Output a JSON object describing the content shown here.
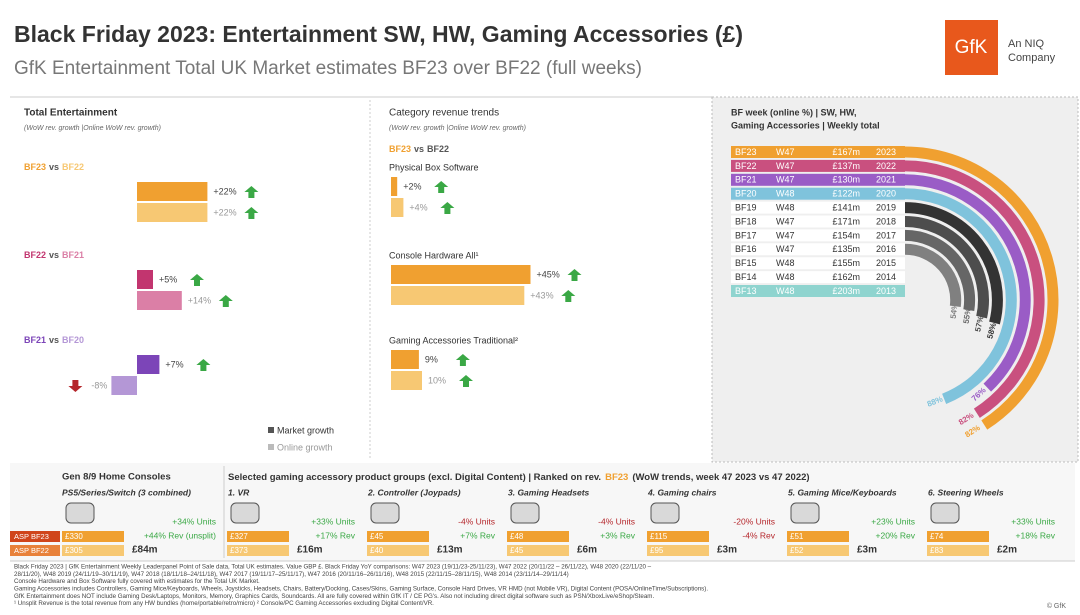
{
  "header": {
    "title": "Black Friday 2023: Entertainment SW, HW, Gaming Accessories (£)",
    "subtitle": "GfK Entertainment Total UK Market estimates BF23 over BF22 (full weeks)",
    "logo": "GfK",
    "tagline": [
      "An NIQ",
      "Company"
    ]
  },
  "total_entertainment": {
    "title": "Total Entertainment",
    "subtitle": "(WoW rev. growth |Online WoW rev. growth)",
    "groups": [
      {
        "label": [
          "BF23",
          "vs",
          "BF22"
        ],
        "colors": [
          "#f0a030",
          "#f7c873"
        ],
        "values": [
          22,
          22
        ],
        "value_labels": [
          "+22%",
          "+22%"
        ]
      },
      {
        "label": [
          "BF22",
          "vs",
          "BF21"
        ],
        "colors": [
          "#c2356f",
          "#db7fa6"
        ],
        "values": [
          5,
          14
        ],
        "value_labels": [
          "+5%",
          "+14%"
        ]
      },
      {
        "label": [
          "BF21",
          "vs",
          "BF20"
        ],
        "colors": [
          "#7c45b8",
          "#b497d6"
        ],
        "values": [
          7,
          -8
        ],
        "value_labels": [
          "+7%",
          "-8%"
        ]
      }
    ],
    "legend": [
      {
        "name": "Market growth",
        "color": "#555555"
      },
      {
        "name": "Online growth",
        "color": "#bbbbbb"
      }
    ]
  },
  "category_trends": {
    "title": "Category revenue trends",
    "subtitle": "(WoW rev. growth |Online WoW rev. growth)",
    "label": [
      "BF23",
      "vs",
      "BF22"
    ],
    "colors": [
      "#f0a030",
      "#f7c873"
    ],
    "groups": [
      {
        "name": "Physical Box Software",
        "values": [
          2,
          4
        ],
        "value_labels": [
          "+2%",
          "+4%"
        ]
      },
      {
        "name": "Console Hardware All¹",
        "values": [
          45,
          43
        ],
        "value_labels": [
          "+45%",
          "+43%"
        ]
      },
      {
        "name": "Gaming Accessories Traditional²",
        "values": [
          9,
          10
        ],
        "value_labels": [
          "9%",
          "10%"
        ]
      }
    ]
  },
  "bf_weeks": {
    "title": [
      "BF week (online %) | SW, HW,",
      "Gaming Accessories | Weekly total"
    ],
    "rows": [
      [
        "BF23",
        "W47",
        "£167m",
        "2023"
      ],
      [
        "BF22",
        "W47",
        "£137m",
        "2022"
      ],
      [
        "BF21",
        "W47",
        "£130m",
        "2021"
      ],
      [
        "BF20",
        "W48",
        "£122m",
        "2020"
      ],
      [
        "BF19",
        "W48",
        "£141m",
        "2019"
      ],
      [
        "BF18",
        "W47",
        "£171m",
        "2018"
      ],
      [
        "BF17",
        "W47",
        "£154m",
        "2017"
      ],
      [
        "BF16",
        "W47",
        "£135m",
        "2016"
      ],
      [
        "BF15",
        "W48",
        "£155m",
        "2015"
      ],
      [
        "BF14",
        "W48",
        "£162m",
        "2014"
      ],
      [
        "BF13",
        "W48",
        "£203m",
        "2013"
      ]
    ],
    "colors": [
      "#f0a030",
      "#c9507f",
      "#9a5cc6",
      "#7fc3dc",
      "#333333",
      "#4d4d4d",
      "#666666",
      "#808080",
      "#9a9a9a",
      "#b5b5b5",
      "#8fd4cf"
    ],
    "row_fills": [
      "#f0a030",
      "#c9507f",
      "#9a5cc6",
      "#7fc3dc",
      null,
      null,
      null,
      null,
      null,
      null,
      "#8fd4cf"
    ],
    "online_pct": [
      82,
      82,
      76,
      88,
      58,
      57,
      55,
      54,
      null,
      null,
      null
    ],
    "online_labels": [
      "82%",
      "82%",
      "76%",
      "88%",
      "58%",
      "57%",
      "55%",
      "54%",
      null,
      null,
      null
    ]
  },
  "consoles": {
    "title": "Gen 8/9 Home Consoles",
    "name": "PS5/Series/Switch (3 combined)",
    "units": 34,
    "units_label": "+34% Units",
    "rev": 44,
    "rev_label": "+44% Rev (unsplit)",
    "revenue_label": "£84m",
    "asp_labels": [
      "£330",
      "£305"
    ],
    "asp_row_labels": [
      "ASP BF23",
      "ASP BF22"
    ]
  },
  "accessories": {
    "title": [
      "Selected gaming accessory product groups (excl. Digital Content) | Ranked on rev.",
      "BF23",
      "(WoW trends, week 47 2023 vs 47 2022)"
    ],
    "groups": [
      {
        "name": "1. VR",
        "units": 33,
        "units_label": "+33% Units",
        "rev": 17,
        "rev_label": "+17% Rev",
        "revenue_label": "£16m",
        "asp_labels": [
          "£327",
          "£373"
        ]
      },
      {
        "name": "2. Controller (Joypads)",
        "units": -4,
        "units_label": "-4% Units",
        "rev": 7,
        "rev_label": "+7% Rev",
        "revenue_label": "£13m",
        "asp_labels": [
          "£45",
          "£40"
        ]
      },
      {
        "name": "3. Gaming Headsets",
        "units": -4,
        "units_label": "-4% Units",
        "rev": 3,
        "rev_label": "+3% Rev",
        "revenue_label": "£6m",
        "asp_labels": [
          "£48",
          "£45"
        ]
      },
      {
        "name": "4. Gaming chairs",
        "units": -20,
        "units_label": "-20% Units",
        "rev": -4,
        "rev_label": "-4% Rev",
        "revenue_label": "£3m",
        "asp_labels": [
          "£115",
          "£95"
        ]
      },
      {
        "name": "5. Gaming Mice/Keyboards",
        "units": 23,
        "units_label": "+23% Units",
        "rev": 20,
        "rev_label": "+20% Rev",
        "revenue_label": "£3m",
        "asp_labels": [
          "£51",
          "£52"
        ]
      },
      {
        "name": "6. Steering Wheels",
        "units": 33,
        "units_label": "+33% Units",
        "rev": 18,
        "rev_label": "+18% Rev",
        "revenue_label": "£2m",
        "asp_labels": [
          "£74",
          "£83"
        ]
      }
    ]
  },
  "footnotes": [
    "Black Friday 2023 | GfK Entertainment Weekly Leaderpanel Point of Sale data, Total UK estimates. Value GBP £. Black Friday YoY comparisons: W47 2023 (19/11/23-25/11/23), W47 2022 (20/11/22 – 26/11/22), W48 2020 (22/11/20 –",
    "28/11/20), W48 2019 (24/11/19–30/11/19), W47 2018 (18/11/18–24/11/18), W47 2017 (19/11/17–25/11/17), W47 2016 (20/11/16–26/11/16), W48 2015 (22/11/15–28/11/15), W48 2014 (23/11/14–29/11/14)",
    "Console Hardware and Box Software fully covered with estimates for the Total UK Market.",
    "Gaming Accessories includes Controllers, Gaming Mice/Keyboards, Wheels, Joysticks, Headsets, Chairs, Battery/Docking, Cases/Skins, Gaming Surface, Console Hard Drives, VR HMD (not Mobile VR), Digital Content (POSA/OnlineTime/Subscriptions).",
    "GfK Entertainment does NOT include Gaming Desk/Laptops, Monitors, Memory, Graphics Cards, Soundcards.  All are fully covered within GfK IT / CE PG's.  Also not including direct digital software such as PSN/XboxLive/eShop/Steam.",
    "¹ Unsplit Revenue is the total revenue from any HW bundles (home/portable/retro/micro) ² Console/PC Gaming Accessories excluding Digital Content/VR."
  ],
  "copyright": "© GfK"
}
